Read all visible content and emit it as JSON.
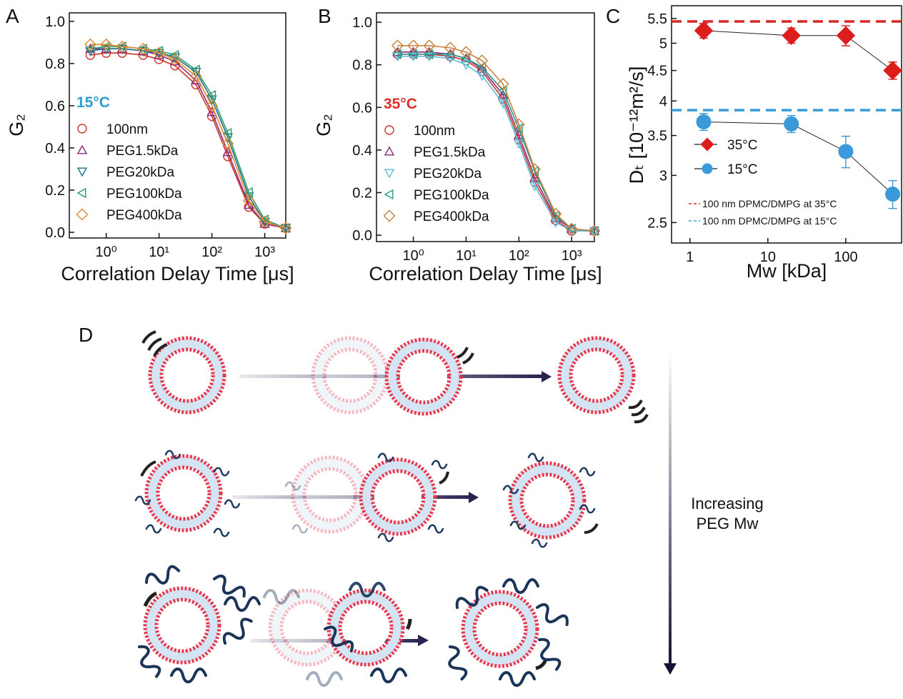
{
  "chart_data": [
    {
      "type": "scatter",
      "label": "A",
      "xlabel": "Correlation Delay Time [μs]",
      "ylabel": "G₂",
      "xlog": true,
      "xlim": [
        0.2,
        2500
      ],
      "ylim": [
        -0.027,
        1.04
      ],
      "xticks": [
        {
          "value": 1,
          "label": "10⁰"
        },
        {
          "value": 10,
          "label": "10¹"
        },
        {
          "value": 100,
          "label": "10²"
        },
        {
          "value": 1000,
          "label": "10³"
        }
      ],
      "yticks": [
        {
          "value": 0,
          "label": "0.0"
        },
        0.2,
        0.4,
        0.6,
        0.8,
        {
          "value": 1,
          "label": "1.0"
        }
      ],
      "annotation": "15°C",
      "annotation_color": "#2a9fd0",
      "connect": true,
      "x": [
        0.5,
        1,
        2,
        5,
        10,
        20,
        50,
        100,
        200,
        500,
        1000,
        2500
      ],
      "series": [
        {
          "name": "100nm",
          "color": "#d0312d",
          "marker": "circle",
          "values": [
            0.84,
            0.85,
            0.85,
            0.84,
            0.82,
            0.79,
            0.7,
            0.55,
            0.36,
            0.12,
            0.04,
            0.02
          ]
        },
        {
          "name": "PEG1.5kDa",
          "color": "#8b2a7a",
          "marker": "triangle-up",
          "values": [
            0.87,
            0.87,
            0.87,
            0.86,
            0.84,
            0.81,
            0.72,
            0.57,
            0.38,
            0.13,
            0.04,
            0.02
          ]
        },
        {
          "name": "PEG20kDa",
          "color": "#1f6f8b",
          "marker": "triangle-down",
          "values": [
            0.86,
            0.87,
            0.87,
            0.86,
            0.85,
            0.83,
            0.76,
            0.63,
            0.45,
            0.17,
            0.05,
            0.02
          ]
        },
        {
          "name": "PEG100kDa",
          "color": "#2a9d6f",
          "marker": "triangle-left",
          "values": [
            0.87,
            0.88,
            0.88,
            0.87,
            0.86,
            0.84,
            0.77,
            0.65,
            0.47,
            0.19,
            0.06,
            0.02
          ]
        },
        {
          "name": "PEG400kDa",
          "color": "#e08a2c",
          "marker": "diamond",
          "values": [
            0.89,
            0.89,
            0.88,
            0.87,
            0.85,
            0.82,
            0.74,
            0.6,
            0.42,
            0.15,
            0.05,
            0.02
          ]
        }
      ]
    },
    {
      "type": "scatter",
      "label": "B",
      "xlabel": "Correlation Delay Time [μs]",
      "ylabel": "G₂",
      "xlog": true,
      "xlim": [
        0.2,
        2700
      ],
      "ylim": [
        -0.03,
        1.044
      ],
      "xticks": [
        {
          "value": 1,
          "label": "10⁰"
        },
        {
          "value": 10,
          "label": "10¹"
        },
        {
          "value": 100,
          "label": "10²"
        },
        {
          "value": 1000,
          "label": "10³"
        }
      ],
      "yticks": [
        {
          "value": 0,
          "label": "0.0"
        },
        0.2,
        0.4,
        0.6,
        0.8,
        {
          "value": 1,
          "label": "1.0"
        }
      ],
      "annotation": "35°C",
      "annotation_color": "#e0302a",
      "connect": true,
      "x": [
        0.5,
        1,
        2,
        5,
        10,
        20,
        50,
        100,
        200,
        500,
        1000,
        2700
      ],
      "series": [
        {
          "name": "100nm",
          "color": "#d0312d",
          "marker": "circle",
          "values": [
            0.85,
            0.85,
            0.85,
            0.84,
            0.82,
            0.77,
            0.64,
            0.45,
            0.25,
            0.07,
            0.02,
            0.02
          ]
        },
        {
          "name": "PEG1.5kDa",
          "color": "#8b2a7a",
          "marker": "triangle-up",
          "values": [
            0.86,
            0.86,
            0.86,
            0.85,
            0.83,
            0.78,
            0.66,
            0.47,
            0.27,
            0.08,
            0.03,
            0.02
          ]
        },
        {
          "name": "PEG20kDa",
          "color": "#5bc0d8",
          "marker": "triangle-down",
          "values": [
            0.84,
            0.84,
            0.84,
            0.83,
            0.8,
            0.75,
            0.62,
            0.43,
            0.23,
            0.06,
            0.02,
            0.02
          ]
        },
        {
          "name": "PEG100kDa",
          "color": "#2a9d8f",
          "marker": "triangle-left",
          "values": [
            0.85,
            0.85,
            0.85,
            0.85,
            0.83,
            0.79,
            0.68,
            0.5,
            0.3,
            0.09,
            0.03,
            0.02
          ]
        },
        {
          "name": "PEG400kDa",
          "color": "#c9803a",
          "marker": "diamond",
          "values": [
            0.89,
            0.89,
            0.89,
            0.88,
            0.86,
            0.82,
            0.71,
            0.52,
            0.31,
            0.1,
            0.03,
            0.02
          ]
        }
      ]
    },
    {
      "type": "scatter",
      "label": "C",
      "xlabel": "Mw [kDa]",
      "ylabel": "Dₜ [10⁻¹²m²/s]",
      "xlog": true,
      "ylog": true,
      "xlim": [
        0.58,
        520
      ],
      "ylim": [
        2.31,
        5.78
      ],
      "xticks": [
        1,
        10,
        100
      ],
      "yticks": [
        2.5,
        3,
        3.5,
        4,
        4.5,
        5,
        5.5
      ],
      "connect": true,
      "line_color": "#222222",
      "filled": true,
      "x": [
        1.5,
        20,
        100,
        400
      ],
      "series": [
        {
          "name": "35°C",
          "color": "#dd1c1c",
          "marker": "diamond",
          "values": [
            5.25,
            5.15,
            5.15,
            4.5
          ],
          "errors": [
            0.15,
            0.15,
            0.2,
            0.15
          ]
        },
        {
          "name": "15°C",
          "color": "#3a9ad9",
          "marker": "circle",
          "values": [
            3.69,
            3.66,
            3.29,
            2.79
          ],
          "errors": [
            0.12,
            0.12,
            0.2,
            0.15
          ]
        }
      ],
      "reference_lines": [
        {
          "value": 5.44,
          "color": "#d62728",
          "label": "100 nm DPMC/DMPG at 35°C"
        },
        {
          "value": 3.86,
          "color": "#3a9ad9",
          "label": "100 nm DPMC/DMPG at 15°C"
        }
      ]
    }
  ],
  "diagram": {
    "label": "D",
    "caption": [
      "Increasing",
      "PEG Mw"
    ]
  }
}
